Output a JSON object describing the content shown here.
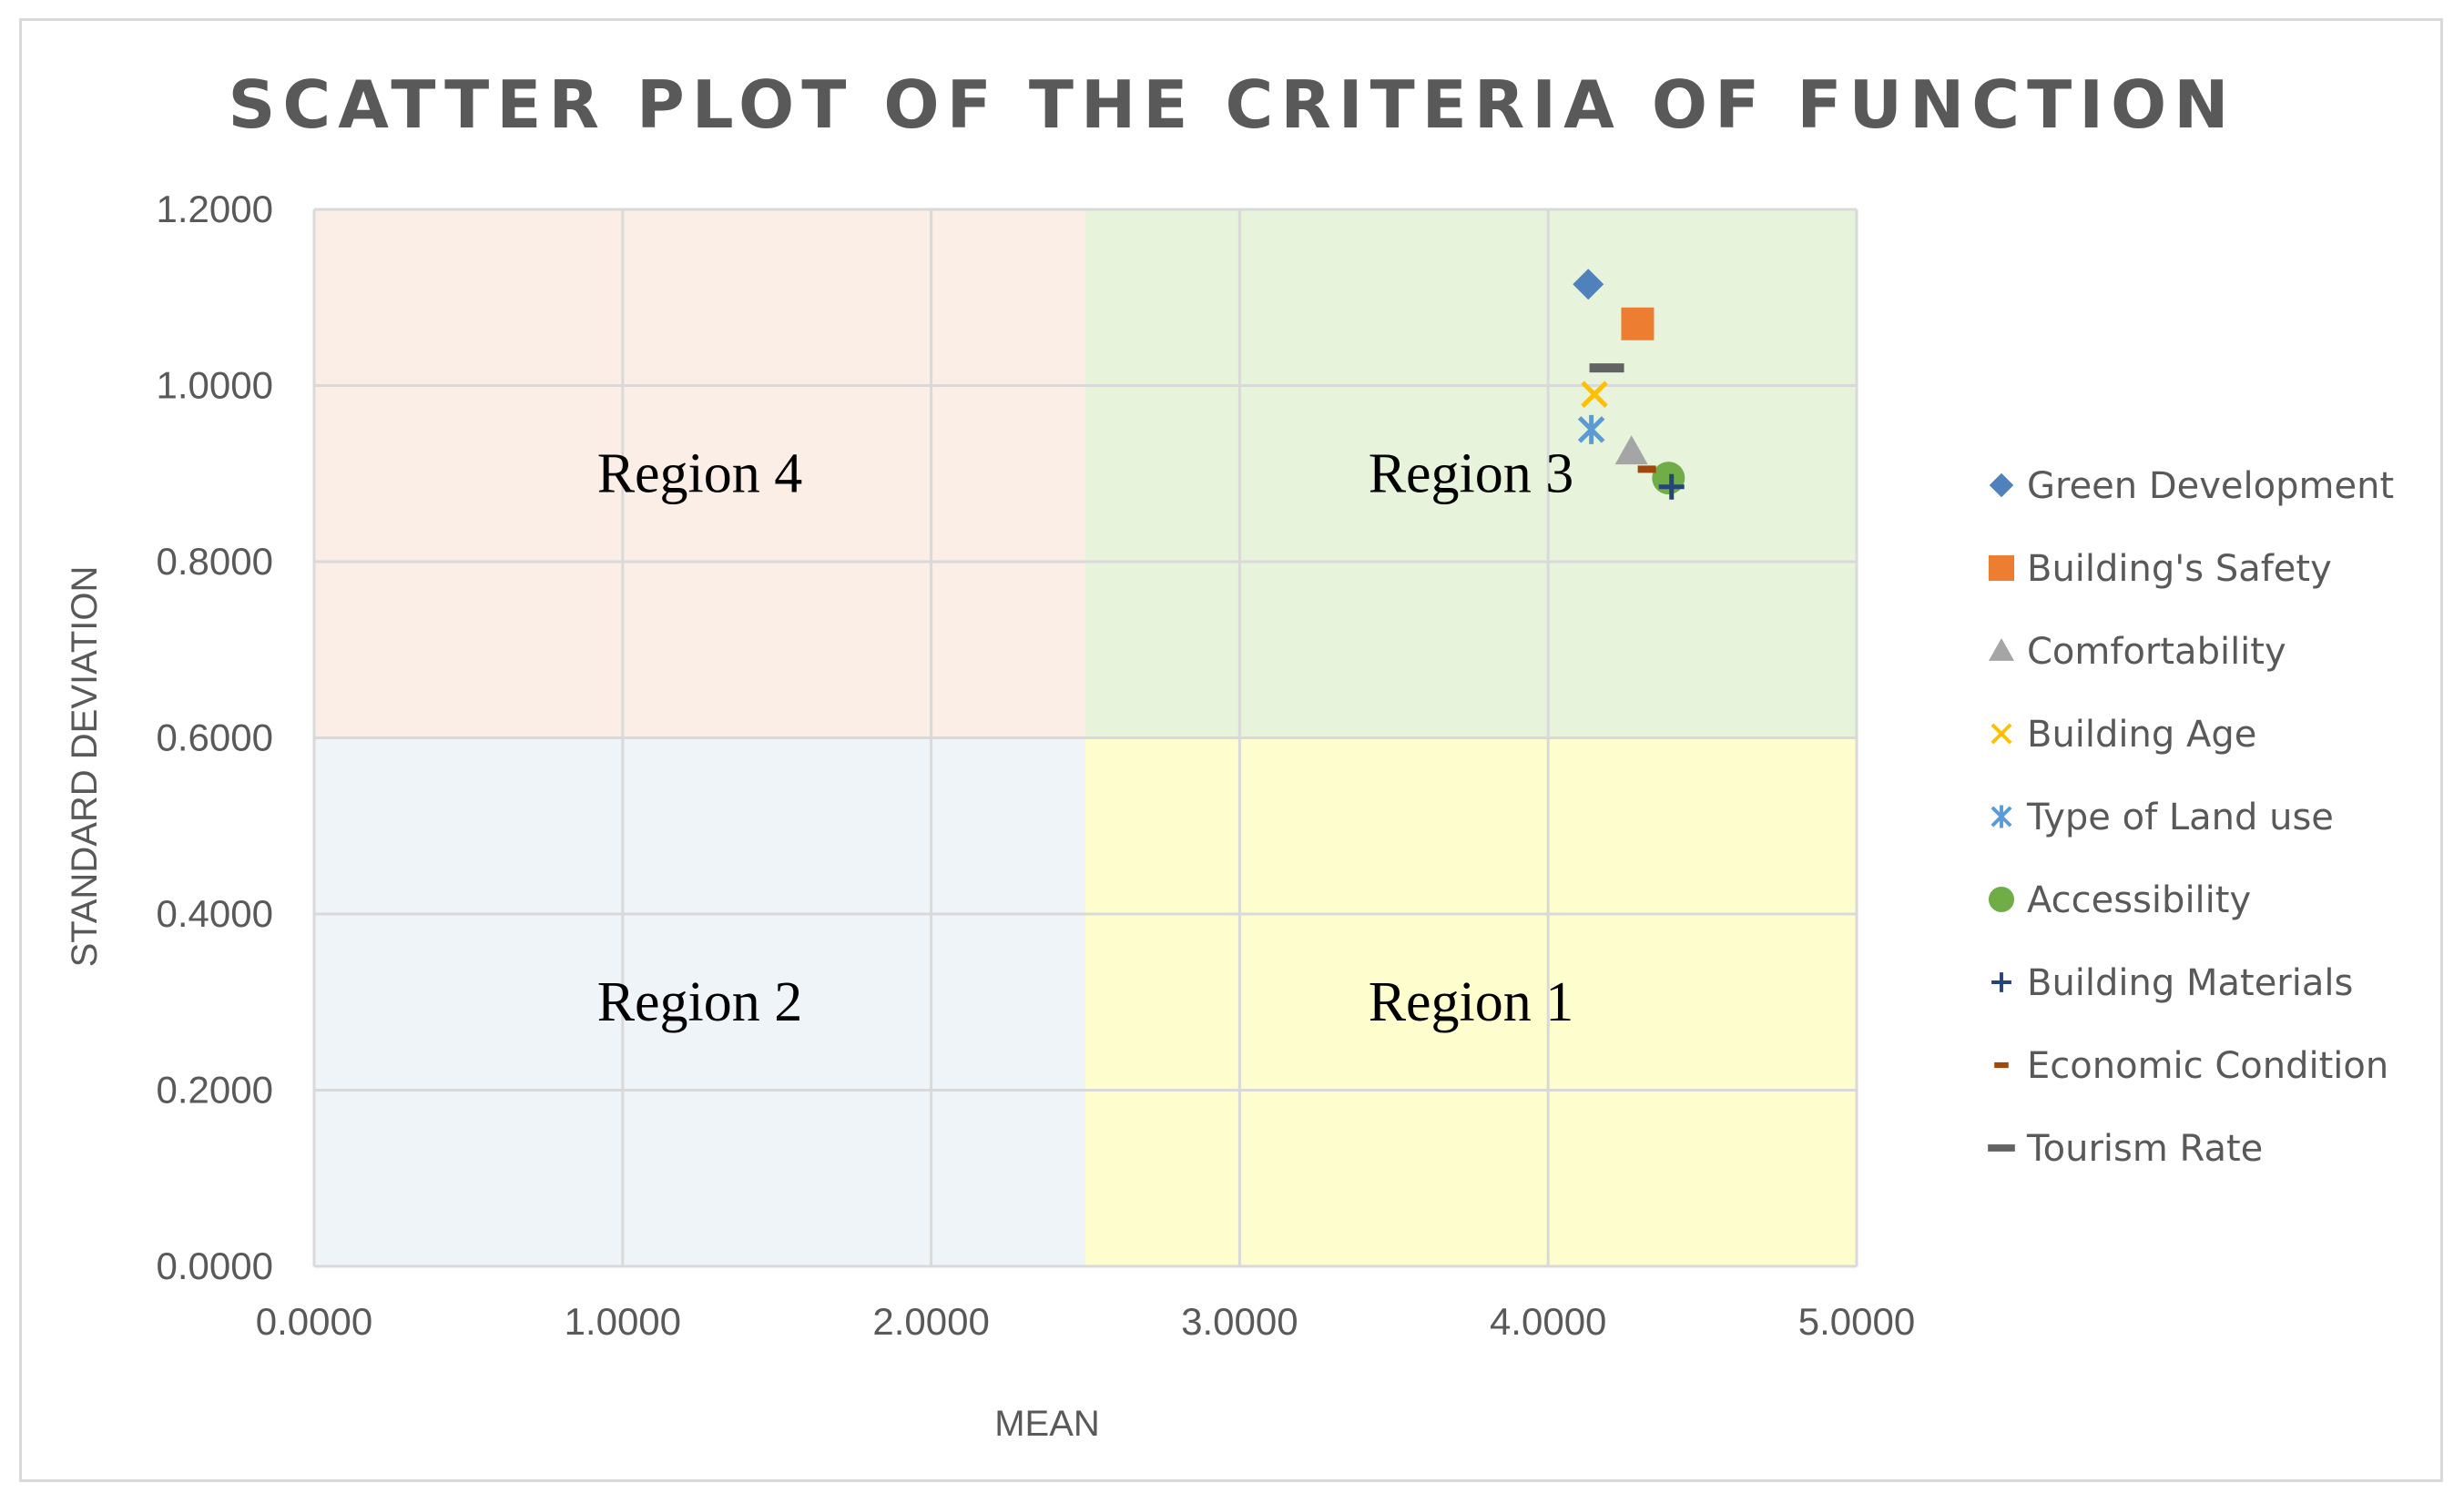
{
  "chart_data": {
    "type": "scatter",
    "title": "SCATTER PLOT OF THE CRITERIA OF FUNCTION",
    "xlabel": "MEAN",
    "ylabel": "STANDARD DEVIATION",
    "xlim": [
      0,
      5
    ],
    "ylim": [
      0,
      1.2
    ],
    "x_ticks": [
      "0.0000",
      "1.0000",
      "2.0000",
      "3.0000",
      "4.0000",
      "5.0000"
    ],
    "y_ticks": [
      "0.0000",
      "0.2000",
      "0.4000",
      "0.6000",
      "0.8000",
      "1.0000",
      "1.2000"
    ],
    "grid": true,
    "legend_position": "right",
    "regions": [
      {
        "label": "Region 4",
        "x_range": [
          0,
          2.5
        ],
        "y_range": [
          0.6,
          1.2
        ],
        "color": "#fbeee6"
      },
      {
        "label": "Region 3",
        "x_range": [
          2.5,
          5
        ],
        "y_range": [
          0.6,
          1.2
        ],
        "color": "#e8f3dc"
      },
      {
        "label": "Region 2",
        "x_range": [
          0,
          2.5
        ],
        "y_range": [
          0,
          0.6
        ],
        "color": "#eff4f9"
      },
      {
        "label": "Region 1",
        "x_range": [
          2.5,
          5
        ],
        "y_range": [
          0,
          0.6
        ],
        "color": "#fdfdcd"
      }
    ],
    "series": [
      {
        "name": "Green Development",
        "x": 4.13,
        "y": 1.115,
        "marker": "diamond",
        "color": "#4f81bd"
      },
      {
        "name": "Building's Safety",
        "x": 4.29,
        "y": 1.07,
        "marker": "square",
        "color": "#ed7d31"
      },
      {
        "name": "Comfortability",
        "x": 4.27,
        "y": 0.925,
        "marker": "triangle",
        "color": "#a5a5a5"
      },
      {
        "name": "Building Age",
        "x": 4.15,
        "y": 0.99,
        "marker": "x",
        "color": "#ffc000"
      },
      {
        "name": "Type of Land use",
        "x": 4.14,
        "y": 0.95,
        "marker": "asterisk",
        "color": "#5b9bd5"
      },
      {
        "name": "Accessibility",
        "x": 4.39,
        "y": 0.895,
        "marker": "circle",
        "color": "#70ad47"
      },
      {
        "name": "Building Materials",
        "x": 4.4,
        "y": 0.885,
        "marker": "plus",
        "color": "#264478"
      },
      {
        "name": "Economic Condition",
        "x": 4.32,
        "y": 0.905,
        "marker": "short-dash",
        "color": "#9e480e"
      },
      {
        "name": "Tourism Rate",
        "x": 4.19,
        "y": 1.02,
        "marker": "dash",
        "color": "#636363"
      }
    ]
  }
}
